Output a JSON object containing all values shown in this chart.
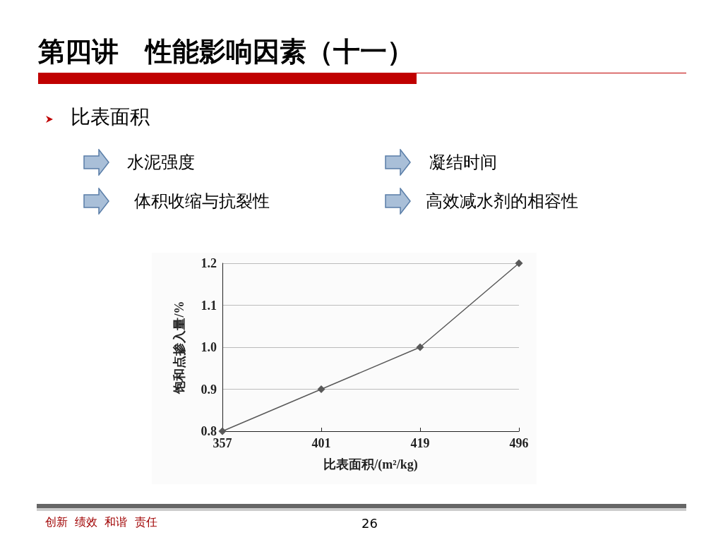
{
  "chart_data": {
    "type": "line",
    "title": "第四讲　性能影响因素（十一）",
    "subtitle": "比表面积",
    "annotations": [
      "水泥强度",
      "凝结时间",
      "体积收缩与抗裂性",
      "高效减水剂的相容性",
      "创新  绩效  和谐  责任",
      "26"
    ],
    "xlabel": "比表面积/(m²/kg)",
    "ylabel": "饱和点掺入量/%",
    "categories": [
      "357",
      "401",
      "419",
      "496"
    ],
    "series": [
      {
        "color": "#595959",
        "values": [
          0.8,
          0.9,
          1.0,
          1.2
        ]
      }
    ],
    "ylim": [
      0.8,
      1.2
    ],
    "yticks": [
      {
        "value": 0.8,
        "label": "0.8"
      },
      {
        "value": 0.9,
        "label": "0.9"
      },
      {
        "value": 1.0,
        "label": "1.0"
      },
      {
        "value": 1.1,
        "label": "1.1"
      },
      {
        "value": 1.2,
        "label": "1.2"
      }
    ],
    "grid": "y",
    "marker": "diamond",
    "line_style": "solid"
  }
}
